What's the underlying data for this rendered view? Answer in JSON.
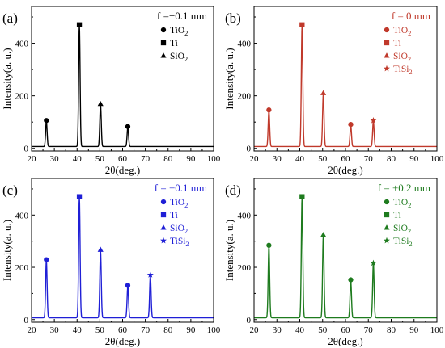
{
  "figure": {
    "panels": [
      {
        "label": "(a)",
        "condition": "f =−0.1 mm"
      },
      {
        "label": "(b)",
        "condition": "f = 0 mm"
      },
      {
        "label": "(c)",
        "condition": "f = +0.1 mm"
      },
      {
        "label": "(d)",
        "condition": "f = +0.2 mm"
      }
    ]
  },
  "chart_data": [
    {
      "type": "line",
      "panel_label": "(a)",
      "annotation": "f =−0.1 mm",
      "color": "#000000",
      "xlabel": "2θ(deg.)",
      "ylabel": "Intensity(a. u.)",
      "xlim": [
        20,
        100
      ],
      "ylim": [
        -10,
        540
      ],
      "xticks": [
        20,
        30,
        40,
        50,
        60,
        70,
        80,
        90,
        100
      ],
      "yticks": [
        0,
        200,
        400
      ],
      "grid": false,
      "legend_position": "top-right",
      "legend": [
        {
          "marker": "circle",
          "phase": "TiO",
          "sub": "2"
        },
        {
          "marker": "square",
          "phase": "Ti",
          "sub": ""
        },
        {
          "marker": "triangle",
          "phase": "SiO",
          "sub": "2"
        }
      ],
      "peaks": [
        {
          "x": 26.5,
          "y": 103,
          "marker": "circle"
        },
        {
          "x": 41.0,
          "y": 467,
          "marker": "square"
        },
        {
          "x": 50.3,
          "y": 166,
          "marker": "triangle"
        },
        {
          "x": 62.3,
          "y": 80,
          "marker": "circle"
        }
      ]
    },
    {
      "type": "line",
      "panel_label": "(b)",
      "annotation": "f = 0 mm",
      "color": "#c0392b",
      "xlabel": "2θ(deg.)",
      "ylabel": "Intensity(a. u.)",
      "xlim": [
        20,
        100
      ],
      "ylim": [
        -10,
        540
      ],
      "xticks": [
        20,
        30,
        40,
        50,
        60,
        70,
        80,
        90,
        100
      ],
      "yticks": [
        0,
        200,
        400
      ],
      "grid": false,
      "legend_position": "top-right",
      "legend": [
        {
          "marker": "circle",
          "phase": "TiO",
          "sub": "2"
        },
        {
          "marker": "square",
          "phase": "Ti",
          "sub": ""
        },
        {
          "marker": "triangle",
          "phase": "SiO",
          "sub": "2"
        },
        {
          "marker": "star",
          "phase": "TiSi",
          "sub": "2"
        }
      ],
      "peaks": [
        {
          "x": 26.5,
          "y": 143,
          "marker": "circle"
        },
        {
          "x": 41.0,
          "y": 467,
          "marker": "square"
        },
        {
          "x": 50.3,
          "y": 207,
          "marker": "triangle"
        },
        {
          "x": 62.3,
          "y": 88,
          "marker": "circle"
        },
        {
          "x": 72.2,
          "y": 103,
          "marker": "star"
        }
      ]
    },
    {
      "type": "line",
      "panel_label": "(c)",
      "annotation": "f = +0.1 mm",
      "color": "#1f1fd6",
      "xlabel": "2θ(deg.)",
      "ylabel": "Intensity(a. u.)",
      "xlim": [
        20,
        100
      ],
      "ylim": [
        -10,
        540
      ],
      "xticks": [
        20,
        30,
        40,
        50,
        60,
        70,
        80,
        90,
        100
      ],
      "yticks": [
        0,
        200,
        400
      ],
      "grid": false,
      "legend_position": "top-right",
      "legend": [
        {
          "marker": "circle",
          "phase": "TiO",
          "sub": "2"
        },
        {
          "marker": "square",
          "phase": "Ti",
          "sub": ""
        },
        {
          "marker": "triangle",
          "phase": "SiO",
          "sub": "2"
        },
        {
          "marker": "star",
          "phase": "TiSi",
          "sub": "2"
        }
      ],
      "peaks": [
        {
          "x": 26.5,
          "y": 226,
          "marker": "circle"
        },
        {
          "x": 41.0,
          "y": 467,
          "marker": "square"
        },
        {
          "x": 50.3,
          "y": 264,
          "marker": "triangle"
        },
        {
          "x": 62.3,
          "y": 128,
          "marker": "circle"
        },
        {
          "x": 72.2,
          "y": 168,
          "marker": "star"
        }
      ]
    },
    {
      "type": "line",
      "panel_label": "(d)",
      "annotation": "f = +0.2 mm",
      "color": "#1e7b1e",
      "xlabel": "2θ(deg.)",
      "ylabel": "Intensity(a. u.)",
      "xlim": [
        20,
        100
      ],
      "ylim": [
        -10,
        540
      ],
      "xticks": [
        20,
        30,
        40,
        50,
        60,
        70,
        80,
        90,
        100
      ],
      "yticks": [
        0,
        200,
        400
      ],
      "grid": false,
      "legend_position": "top-right",
      "legend": [
        {
          "marker": "circle",
          "phase": "TiO",
          "sub": "2"
        },
        {
          "marker": "square",
          "phase": "Ti",
          "sub": ""
        },
        {
          "marker": "triangle",
          "phase": "SiO",
          "sub": "2"
        },
        {
          "marker": "star",
          "phase": "TiSi",
          "sub": "2"
        }
      ],
      "peaks": [
        {
          "x": 26.5,
          "y": 281,
          "marker": "circle"
        },
        {
          "x": 41.0,
          "y": 467,
          "marker": "square"
        },
        {
          "x": 50.3,
          "y": 321,
          "marker": "triangle"
        },
        {
          "x": 62.3,
          "y": 149,
          "marker": "circle"
        },
        {
          "x": 72.2,
          "y": 213,
          "marker": "star"
        }
      ]
    }
  ]
}
